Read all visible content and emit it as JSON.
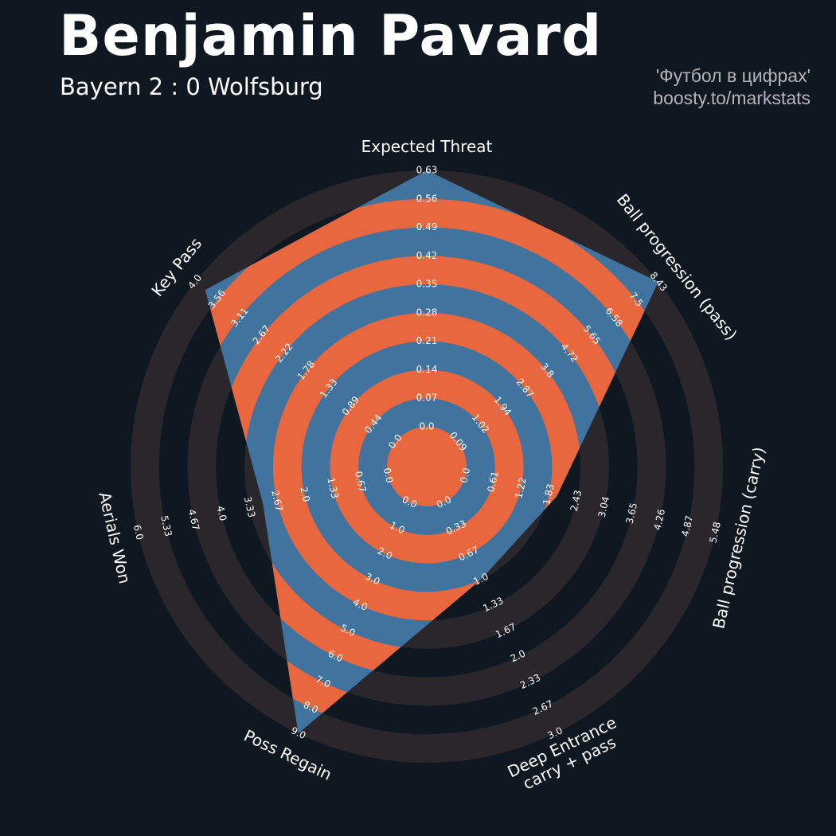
{
  "chart_data": {
    "type": "radar",
    "title": "Benjamin Pavard",
    "subtitle": "Bayern 2 : 0 Wolfsburg",
    "credits": [
      "'Футбол в цифрах'",
      "boosty.to/markstats"
    ],
    "categories": [
      "Expected Threat",
      "Ball progression (pass)",
      "Ball progression (carry)",
      "Deep Entrance\ncarry + pass",
      "Poss Regain",
      "Aerials Won",
      "Key Pass"
    ],
    "values": [
      0.63,
      8.43,
      2.0,
      1.0,
      9.0,
      3.0,
      3.8
    ],
    "ranges": [
      [
        0,
        0.63
      ],
      [
        0.09,
        8.43
      ],
      [
        0,
        5.48
      ],
      [
        0,
        3
      ],
      [
        0,
        9
      ],
      [
        0,
        6
      ],
      [
        0,
        4
      ]
    ],
    "axis_ticks": [
      [
        {
          "value": 0,
          "label": "0.0"
        },
        0.07,
        0.14,
        0.21,
        0.28,
        0.35,
        0.42,
        0.49,
        0.56,
        0.63
      ],
      [
        0.09,
        1.02,
        1.94,
        2.87,
        3.8,
        4.72,
        5.65,
        6.58,
        7.5,
        8.43
      ],
      [
        {
          "value": 0,
          "label": "0.0"
        },
        0.61,
        1.22,
        1.83,
        2.43,
        3.04,
        3.65,
        4.26,
        4.87,
        5.48
      ],
      [
        {
          "value": 0,
          "label": "0.0"
        },
        0.33,
        0.67,
        {
          "value": 1,
          "label": "1.0"
        },
        1.33,
        1.67,
        {
          "value": 2,
          "label": "2.0"
        },
        2.33,
        2.67,
        {
          "value": 3,
          "label": "3.0"
        }
      ],
      [
        {
          "value": 0,
          "label": "0.0"
        },
        {
          "value": 1,
          "label": "1.0"
        },
        {
          "value": 2,
          "label": "2.0"
        },
        {
          "value": 3,
          "label": "3.0"
        },
        {
          "value": 4,
          "label": "4.0"
        },
        {
          "value": 5,
          "label": "5.0"
        },
        {
          "value": 6,
          "label": "6.0"
        },
        {
          "value": 7,
          "label": "7.0"
        },
        {
          "value": 8,
          "label": "8.0"
        },
        {
          "value": 9,
          "label": "9.0"
        }
      ],
      [
        {
          "value": 0,
          "label": "0.0"
        },
        0.67,
        1.33,
        {
          "value": 2,
          "label": "2.0"
        },
        2.67,
        3.33,
        {
          "value": 4,
          "label": "4.0"
        },
        4.67,
        5.33,
        {
          "value": 6,
          "label": "6.0"
        }
      ],
      [
        {
          "value": 0,
          "label": "0.0"
        },
        0.44,
        0.89,
        1.33,
        1.78,
        2.22,
        2.67,
        3.11,
        3.56,
        {
          "value": 4,
          "label": "4.0"
        }
      ]
    ],
    "color": "#41739f",
    "ring_color": "#e8673f"
  }
}
